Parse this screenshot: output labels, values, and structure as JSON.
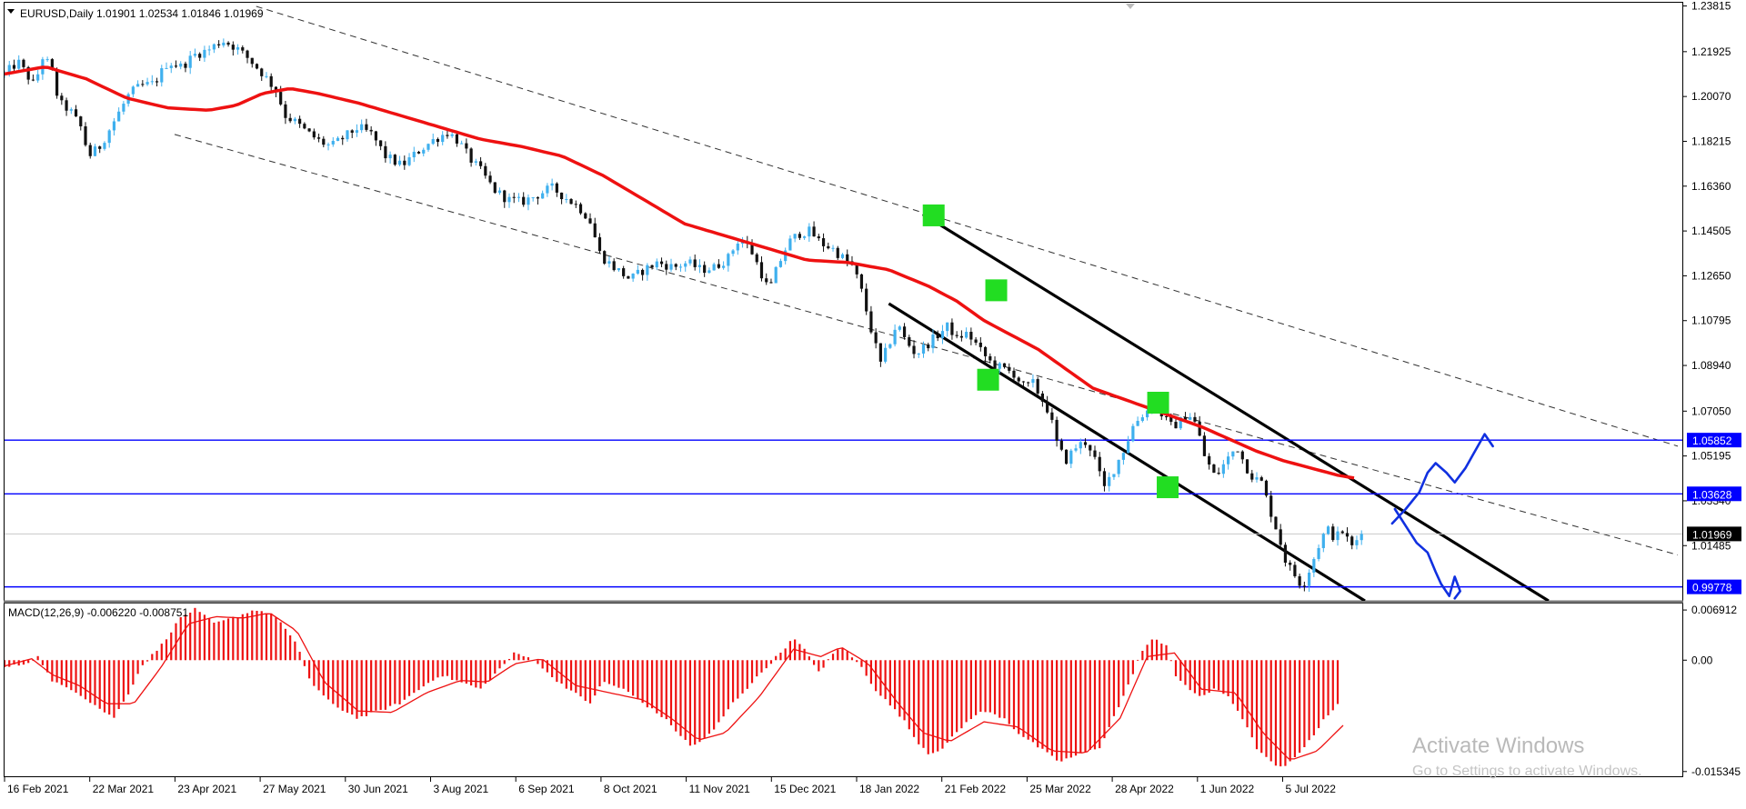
{
  "header": {
    "symbol_label": "EURUSD,Daily  1.01901 1.02534 1.01846 1.01969",
    "macd_label": "MACD(12,26,9) -0.006220 -0.008751"
  },
  "colors": {
    "ma": "#ee1111",
    "hline": "#0000ff",
    "tag_bg": "#0000ff",
    "price_tag_bg": "#000000",
    "up_candle": "#3fb0ee",
    "down_candle": "#111111",
    "macd_hist": "#ee1111",
    "signal": "#ee1111",
    "marker": "#22dd22",
    "drawing": "#1030e0"
  },
  "chart_data": [
    {
      "type": "candlestick",
      "symbol": "EURUSD",
      "timeframe": "Daily",
      "ohlc_last": {
        "open": 1.01901,
        "high": 1.02534,
        "low": 1.01846,
        "close": 1.01969
      },
      "y_ticks": [
        "1.23815",
        "1.21925",
        "1.20070",
        "1.18215",
        "1.16360",
        "1.14505",
        "1.12650",
        "1.10795",
        "1.08940",
        "1.07050",
        "1.05195",
        "1.03340",
        "1.01485"
      ],
      "ylim": [
        0.992,
        1.2395
      ],
      "x_ticks": [
        "16 Feb 2021",
        "22 Mar 2021",
        "23 Apr 2021",
        "27 May 2021",
        "30 Jun 2021",
        "3 Aug 2021",
        "6 Sep 2021",
        "8 Oct 2021",
        "11 Nov 2021",
        "15 Dec 2021",
        "18 Jan 2022",
        "21 Feb 2022",
        "25 Mar 2022",
        "28 Apr 2022",
        "1 Jun 2022",
        "5 Jul 2022"
      ],
      "close_path": [
        [
          0,
          1.21
        ],
        [
          10,
          1.215
        ],
        [
          22,
          1.205
        ],
        [
          28,
          1.217
        ],
        [
          34,
          1.213
        ],
        [
          40,
          1.198
        ],
        [
          48,
          1.195
        ],
        [
          56,
          1.188
        ],
        [
          62,
          1.176
        ],
        [
          70,
          1.18
        ],
        [
          80,
          1.19
        ],
        [
          92,
          1.202
        ],
        [
          100,
          1.205
        ],
        [
          110,
          1.206
        ],
        [
          120,
          1.215
        ],
        [
          130,
          1.213
        ],
        [
          140,
          1.218
        ],
        [
          150,
          1.22
        ],
        [
          160,
          1.224
        ],
        [
          170,
          1.221
        ],
        [
          180,
          1.216
        ],
        [
          190,
          1.21
        ],
        [
          200,
          1.203
        ],
        [
          206,
          1.193
        ],
        [
          214,
          1.19
        ],
        [
          222,
          1.186
        ],
        [
          232,
          1.182
        ],
        [
          240,
          1.18
        ],
        [
          250,
          1.184
        ],
        [
          260,
          1.188
        ],
        [
          270,
          1.185
        ],
        [
          280,
          1.176
        ],
        [
          292,
          1.172
        ],
        [
          304,
          1.178
        ],
        [
          316,
          1.183
        ],
        [
          326,
          1.186
        ],
        [
          334,
          1.182
        ],
        [
          342,
          1.175
        ],
        [
          350,
          1.17
        ],
        [
          360,
          1.162
        ],
        [
          370,
          1.158
        ],
        [
          380,
          1.157
        ],
        [
          392,
          1.16
        ],
        [
          402,
          1.163
        ],
        [
          412,
          1.159
        ],
        [
          422,
          1.155
        ],
        [
          430,
          1.15
        ],
        [
          438,
          1.135
        ],
        [
          448,
          1.13
        ],
        [
          460,
          1.125
        ],
        [
          470,
          1.129
        ],
        [
          480,
          1.132
        ],
        [
          492,
          1.13
        ],
        [
          502,
          1.132
        ],
        [
          512,
          1.129
        ],
        [
          522,
          1.13
        ],
        [
          532,
          1.134
        ],
        [
          540,
          1.142
        ],
        [
          548,
          1.138
        ],
        [
          556,
          1.128
        ],
        [
          562,
          1.12
        ],
        [
          568,
          1.13
        ],
        [
          576,
          1.14
        ],
        [
          584,
          1.144
        ],
        [
          592,
          1.145
        ],
        [
          600,
          1.14
        ],
        [
          608,
          1.138
        ],
        [
          616,
          1.134
        ],
        [
          624,
          1.13
        ],
        [
          630,
          1.12
        ],
        [
          638,
          1.102
        ],
        [
          644,
          1.09
        ],
        [
          650,
          1.098
        ],
        [
          656,
          1.107
        ],
        [
          662,
          1.1
        ],
        [
          670,
          1.094
        ],
        [
          678,
          1.098
        ],
        [
          686,
          1.102
        ],
        [
          694,
          1.106
        ],
        [
          700,
          1.1
        ],
        [
          706,
          1.103
        ],
        [
          712,
          1.1
        ],
        [
          718,
          1.095
        ],
        [
          726,
          1.09
        ],
        [
          734,
          1.088
        ],
        [
          742,
          1.086
        ],
        [
          750,
          1.08
        ],
        [
          756,
          1.082
        ],
        [
          762,
          1.076
        ],
        [
          768,
          1.07
        ],
        [
          774,
          1.056
        ],
        [
          780,
          1.05
        ],
        [
          788,
          1.056
        ],
        [
          796,
          1.058
        ],
        [
          802,
          1.05
        ],
        [
          808,
          1.038
        ],
        [
          816,
          1.047
        ],
        [
          824,
          1.056
        ],
        [
          830,
          1.065
        ],
        [
          838,
          1.07
        ],
        [
          846,
          1.073
        ],
        [
          852,
          1.068
        ],
        [
          858,
          1.064
        ],
        [
          864,
          1.066
        ],
        [
          870,
          1.07
        ],
        [
          876,
          1.065
        ],
        [
          882,
          1.052
        ],
        [
          890,
          1.043
        ],
        [
          898,
          1.05
        ],
        [
          906,
          1.056
        ],
        [
          912,
          1.048
        ],
        [
          918,
          1.043
        ],
        [
          924,
          1.041
        ],
        [
          930,
          1.03
        ],
        [
          936,
          1.02
        ],
        [
          942,
          1.008
        ],
        [
          948,
          1.003
        ],
        [
          954,
          0.998
        ],
        [
          960,
          1.006
        ],
        [
          966,
          1.015
        ],
        [
          972,
          1.022
        ],
        [
          978,
          1.018
        ],
        [
          984,
          1.021
        ],
        [
          990,
          1.014
        ],
        [
          996,
          1.019
        ],
        [
          1000,
          1.0197
        ]
      ],
      "ma_path": [
        [
          0,
          1.21
        ],
        [
          30,
          1.213
        ],
        [
          60,
          1.208
        ],
        [
          90,
          1.2
        ],
        [
          120,
          1.196
        ],
        [
          150,
          1.195
        ],
        [
          170,
          1.197
        ],
        [
          190,
          1.202
        ],
        [
          210,
          1.204
        ],
        [
          230,
          1.202
        ],
        [
          260,
          1.198
        ],
        [
          290,
          1.193
        ],
        [
          320,
          1.188
        ],
        [
          350,
          1.183
        ],
        [
          380,
          1.18
        ],
        [
          410,
          1.176
        ],
        [
          440,
          1.168
        ],
        [
          470,
          1.158
        ],
        [
          500,
          1.148
        ],
        [
          530,
          1.143
        ],
        [
          560,
          1.138
        ],
        [
          590,
          1.133
        ],
        [
          620,
          1.132
        ],
        [
          650,
          1.129
        ],
        [
          680,
          1.122
        ],
        [
          700,
          1.116
        ],
        [
          720,
          1.108
        ],
        [
          740,
          1.102
        ],
        [
          760,
          1.096
        ],
        [
          780,
          1.088
        ],
        [
          800,
          1.08
        ],
        [
          820,
          1.076
        ],
        [
          840,
          1.072
        ],
        [
          860,
          1.068
        ],
        [
          880,
          1.064
        ],
        [
          900,
          1.059
        ],
        [
          920,
          1.054
        ],
        [
          940,
          1.05
        ],
        [
          960,
          1.047
        ],
        [
          980,
          1.044
        ],
        [
          995,
          1.0425
        ]
      ],
      "horizontal_levels": [
        1.05852,
        1.03628,
        0.99778
      ],
      "level_tags": [
        "1.05852",
        "1.03628",
        "0.99778"
      ],
      "current_price": 1.01969,
      "current_price_tag": "1.01969",
      "trend_lines": [
        {
          "style": "dashed",
          "p1": [
            185,
            1.238
          ],
          "p2": [
            1230,
            1.056
          ]
        },
        {
          "style": "dashed",
          "p1": [
            125,
            1.185
          ],
          "p2": [
            1230,
            1.011
          ]
        },
        {
          "style": "solid",
          "p1": [
            675,
            1.152
          ],
          "p2": [
            1135,
            0.992
          ]
        },
        {
          "style": "solid",
          "p1": [
            650,
            1.115
          ],
          "p2": [
            1000,
            0.992
          ]
        }
      ],
      "markers": [
        [
          683,
          1.1515
        ],
        [
          729,
          1.1205
        ],
        [
          723,
          1.0835
        ],
        [
          848,
          1.074
        ],
        [
          855,
          1.039
        ]
      ],
      "drawings": [
        [
          [
            1020,
            1.024
          ],
          [
            1030,
            1.03
          ],
          [
            1040,
            1.037
          ],
          [
            1046,
            1.045
          ],
          [
            1052,
            1.049
          ],
          [
            1060,
            1.045
          ],
          [
            1066,
            1.041
          ],
          [
            1074,
            1.047
          ],
          [
            1080,
            1.053
          ],
          [
            1088,
            1.061
          ],
          [
            1094,
            1.056
          ]
        ],
        [
          [
            1022,
            1.03
          ],
          [
            1030,
            1.023
          ],
          [
            1038,
            1.016
          ],
          [
            1046,
            1.012
          ],
          [
            1052,
            1.004
          ],
          [
            1056,
            0.999
          ],
          [
            1062,
            0.994
          ],
          [
            1066,
            1.002
          ],
          [
            1070,
            0.996
          ],
          [
            1066,
            0.993
          ]
        ]
      ]
    },
    {
      "type": "bar",
      "name": "MACD(12,26,9)",
      "macd": -0.00622,
      "signal": -0.008751,
      "y_ticks": [
        "0.006912",
        "0.00",
        "-0.015345"
      ],
      "ylim": [
        -0.016,
        0.0078
      ],
      "hist_path": [
        [
          0,
          -0.001
        ],
        [
          15,
          -0.0005
        ],
        [
          25,
          0.0005
        ],
        [
          35,
          -0.003
        ],
        [
          50,
          -0.004
        ],
        [
          65,
          -0.006
        ],
        [
          80,
          -0.008
        ],
        [
          90,
          -0.005
        ],
        [
          100,
          -0.001
        ],
        [
          115,
          0.002
        ],
        [
          130,
          0.006
        ],
        [
          140,
          0.007
        ],
        [
          155,
          0.005
        ],
        [
          170,
          0.006
        ],
        [
          185,
          0.007
        ],
        [
          200,
          0.006
        ],
        [
          215,
          0.002
        ],
        [
          225,
          -0.003
        ],
        [
          240,
          -0.006
        ],
        [
          260,
          -0.008
        ],
        [
          275,
          -0.007
        ],
        [
          290,
          -0.006
        ],
        [
          305,
          -0.004
        ],
        [
          320,
          -0.002
        ],
        [
          335,
          -0.003
        ],
        [
          350,
          -0.004
        ],
        [
          365,
          -0.001
        ],
        [
          375,
          0.001
        ],
        [
          390,
          0.0
        ],
        [
          400,
          -0.002
        ],
        [
          415,
          -0.004
        ],
        [
          430,
          -0.006
        ],
        [
          440,
          -0.003
        ],
        [
          455,
          -0.004
        ],
        [
          470,
          -0.006
        ],
        [
          485,
          -0.008
        ],
        [
          495,
          -0.01
        ],
        [
          505,
          -0.012
        ],
        [
          520,
          -0.01
        ],
        [
          535,
          -0.006
        ],
        [
          550,
          -0.003
        ],
        [
          565,
          0.0
        ],
        [
          580,
          0.003
        ],
        [
          590,
          0.001
        ],
        [
          600,
          -0.002
        ],
        [
          605,
          0.0
        ],
        [
          615,
          0.002
        ],
        [
          630,
          -0.001
        ],
        [
          640,
          -0.004
        ],
        [
          650,
          -0.006
        ],
        [
          660,
          -0.008
        ],
        [
          670,
          -0.011
        ],
        [
          680,
          -0.013
        ],
        [
          690,
          -0.012
        ],
        [
          700,
          -0.01
        ],
        [
          710,
          -0.008
        ],
        [
          720,
          -0.007
        ],
        [
          735,
          -0.008
        ],
        [
          745,
          -0.01
        ],
        [
          760,
          -0.012
        ],
        [
          775,
          -0.014
        ],
        [
          790,
          -0.013
        ],
        [
          805,
          -0.012
        ],
        [
          815,
          -0.008
        ],
        [
          825,
          -0.004
        ],
        [
          835,
          0.001
        ],
        [
          845,
          0.003
        ],
        [
          855,
          0.002
        ],
        [
          860,
          -0.002
        ],
        [
          870,
          -0.004
        ],
        [
          880,
          -0.005
        ],
        [
          890,
          -0.004
        ],
        [
          900,
          -0.005
        ],
        [
          910,
          -0.008
        ],
        [
          920,
          -0.012
        ],
        [
          930,
          -0.014
        ],
        [
          940,
          -0.015
        ],
        [
          950,
          -0.013
        ],
        [
          960,
          -0.011
        ],
        [
          970,
          -0.008
        ],
        [
          980,
          -0.0062
        ]
      ],
      "signal_path": [
        [
          0,
          -0.0008
        ],
        [
          20,
          0.0002
        ],
        [
          35,
          -0.002
        ],
        [
          55,
          -0.0035
        ],
        [
          75,
          -0.006
        ],
        [
          95,
          -0.006
        ],
        [
          115,
          -0.001
        ],
        [
          135,
          0.005
        ],
        [
          155,
          0.006
        ],
        [
          175,
          0.0058
        ],
        [
          195,
          0.0065
        ],
        [
          215,
          0.004
        ],
        [
          235,
          -0.003
        ],
        [
          260,
          -0.007
        ],
        [
          285,
          -0.0072
        ],
        [
          310,
          -0.0045
        ],
        [
          335,
          -0.0028
        ],
        [
          355,
          -0.003
        ],
        [
          375,
          -0.0005
        ],
        [
          395,
          0.0002
        ],
        [
          420,
          -0.0035
        ],
        [
          445,
          -0.0045
        ],
        [
          470,
          -0.0055
        ],
        [
          490,
          -0.008
        ],
        [
          510,
          -0.011
        ],
        [
          530,
          -0.01
        ],
        [
          555,
          -0.005
        ],
        [
          580,
          0.0015
        ],
        [
          600,
          0.0005
        ],
        [
          615,
          0.0018
        ],
        [
          635,
          -0.0005
        ],
        [
          655,
          -0.0055
        ],
        [
          675,
          -0.01
        ],
        [
          695,
          -0.0112
        ],
        [
          720,
          -0.0085
        ],
        [
          745,
          -0.0092
        ],
        [
          770,
          -0.0125
        ],
        [
          795,
          -0.0128
        ],
        [
          820,
          -0.008
        ],
        [
          840,
          0.0005
        ],
        [
          860,
          0.001
        ],
        [
          880,
          -0.004
        ],
        [
          905,
          -0.0045
        ],
        [
          925,
          -0.01
        ],
        [
          945,
          -0.0138
        ],
        [
          965,
          -0.0125
        ],
        [
          985,
          -0.0088
        ]
      ]
    }
  ],
  "watermark": {
    "title": "Activate Windows",
    "subtitle": "Go to Settings to activate Windows."
  }
}
